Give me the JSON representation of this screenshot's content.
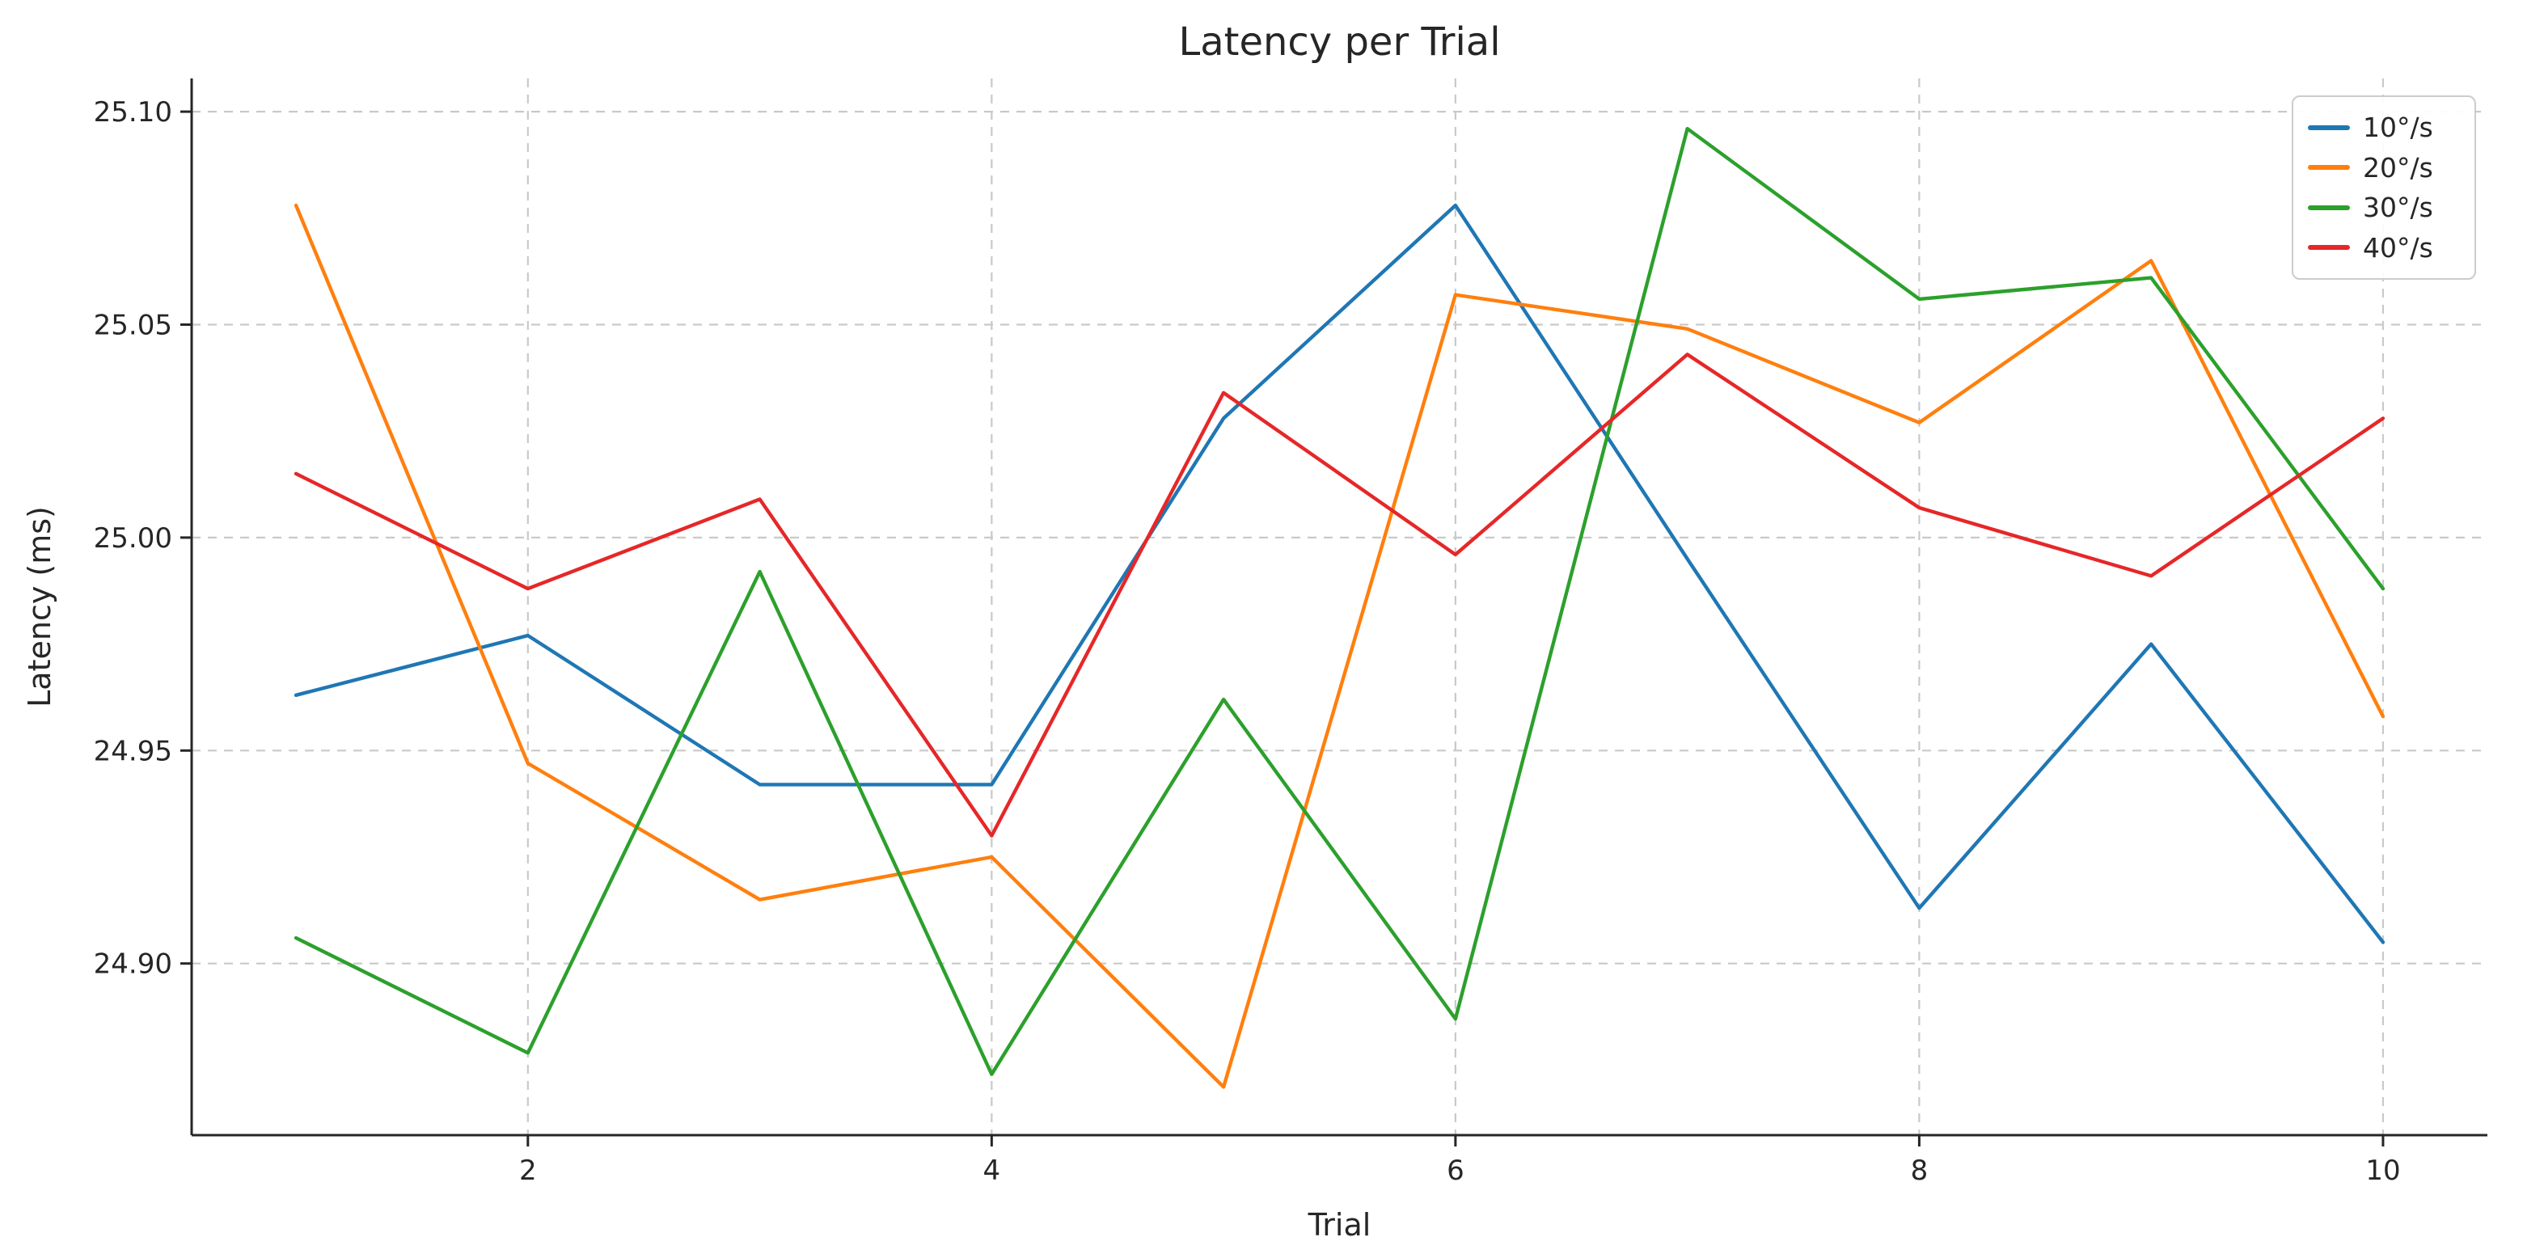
{
  "chart_data": {
    "type": "line",
    "title": "Latency per Trial",
    "xlabel": "Trial",
    "ylabel": "Latency (ms)",
    "x": [
      1,
      2,
      3,
      4,
      5,
      6,
      7,
      8,
      9,
      10
    ],
    "series": [
      {
        "name": "10°/s",
        "color": "#1f77b4",
        "values": [
          24.963,
          24.977,
          24.942,
          24.942,
          25.028,
          25.078,
          24.995,
          24.913,
          24.975,
          24.905
        ]
      },
      {
        "name": "20°/s",
        "color": "#ff7f0e",
        "values": [
          25.078,
          24.947,
          24.915,
          24.925,
          24.871,
          25.057,
          25.049,
          25.027,
          25.065,
          24.958
        ]
      },
      {
        "name": "30°/s",
        "color": "#2ca02c",
        "values": [
          24.906,
          24.879,
          24.992,
          24.874,
          24.962,
          24.887,
          25.096,
          25.056,
          25.061,
          24.988
        ]
      },
      {
        "name": "40°/s",
        "color": "#e62728",
        "values": [
          25.015,
          24.988,
          25.009,
          24.93,
          25.034,
          24.996,
          25.043,
          25.007,
          24.991,
          25.028
        ]
      }
    ],
    "xticks": {
      "values": [
        2,
        4,
        6,
        8,
        10
      ],
      "labels": [
        "2",
        "4",
        "6",
        "8",
        "10"
      ]
    },
    "yticks": {
      "values": [
        24.9,
        24.95,
        25.0,
        25.05,
        25.1
      ],
      "labels": [
        "24.90",
        "24.95",
        "25.00",
        "25.05",
        "25.10"
      ]
    },
    "xlim": [
      0.55,
      10.45
    ],
    "ylim": [
      24.8597,
      25.1078
    ],
    "grid": true,
    "legend_position": "upper right"
  },
  "colors": {
    "background": "#ffffff",
    "grid": "#c9c9c9",
    "spine": "#262626",
    "text": "#262626",
    "legend_border": "#cccccc"
  }
}
